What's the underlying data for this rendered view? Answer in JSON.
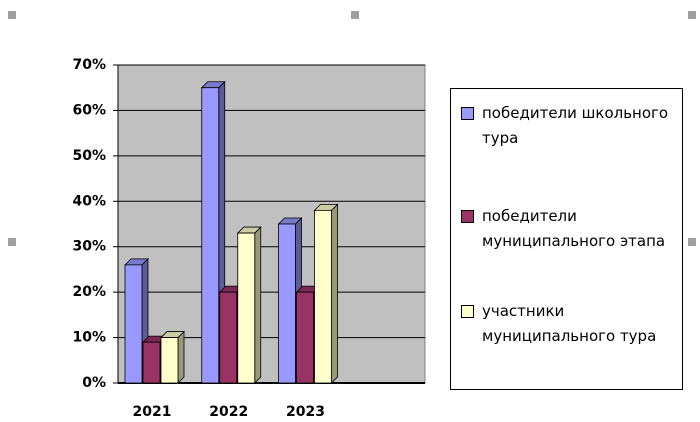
{
  "chart_data": {
    "type": "bar3d",
    "categories": [
      "2021",
      "2022",
      "2023",
      null
    ],
    "series": [
      {
        "name": "победители школьного тура",
        "color": "#9999ff",
        "values": [
          26,
          65,
          35,
          null
        ]
      },
      {
        "name": "победители муниципального этапа",
        "color": "#993366",
        "values": [
          9,
          20,
          20,
          null
        ]
      },
      {
        "name": "участники муниципального тура",
        "color": "#ffffcc",
        "values": [
          10,
          33,
          38,
          null
        ]
      }
    ],
    "ylim": [
      0,
      70
    ],
    "yticks": [
      {
        "value": 0,
        "label": "0%"
      },
      {
        "value": 10,
        "label": "10%"
      },
      {
        "value": 20,
        "label": "20%"
      },
      {
        "value": 30,
        "label": "30%"
      },
      {
        "value": 40,
        "label": "40%"
      },
      {
        "value": 50,
        "label": "50%"
      },
      {
        "value": 60,
        "label": "60%"
      },
      {
        "value": 70,
        "label": "70%"
      }
    ],
    "grid": true,
    "legend": "right"
  }
}
